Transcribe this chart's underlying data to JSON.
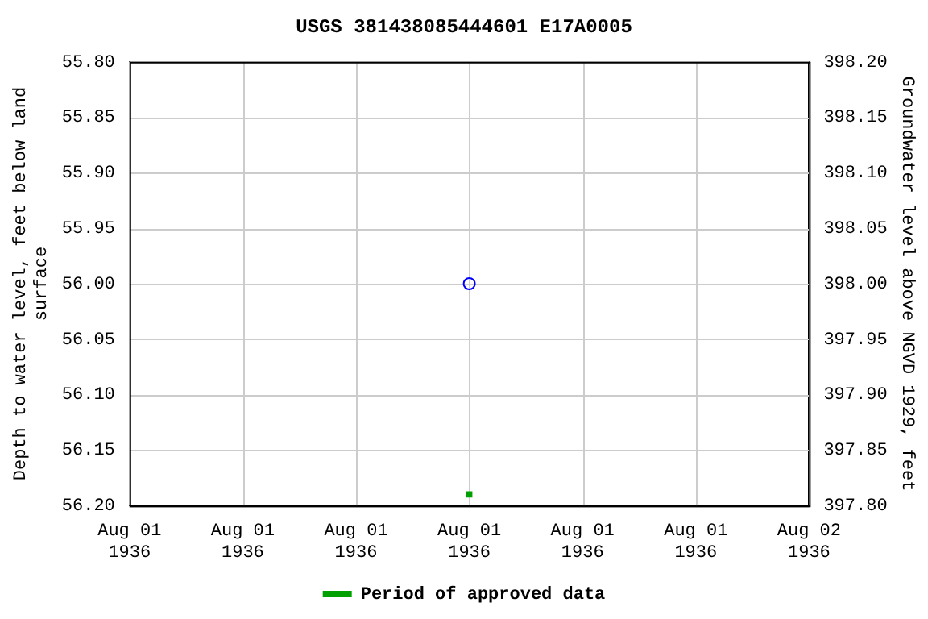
{
  "chart_data": {
    "type": "scatter",
    "title": "USGS 381438085444601 E17A0005",
    "ylabel": "Depth to water level, feet below land surface",
    "y2label": "Groundwater level above NGVD 1929, feet",
    "x": [
      "1936-08-01T12:00"
    ],
    "series": [
      {
        "color": "#0000ff",
        "values": [
          56.0
        ],
        "marker": "circle"
      },
      {
        "name": "Period of approved data",
        "color": "#00a000",
        "values": [
          56.19
        ],
        "marker": "square"
      }
    ],
    "xlim": [
      "1936-08-01T00:00",
      "1936-08-02T00:00"
    ],
    "xticks": [
      {
        "value": "1936-08-01T00:00",
        "label": "Aug 01\n1936"
      },
      {
        "value": "1936-08-01T04:00",
        "label": "Aug 01\n1936"
      },
      {
        "value": "1936-08-01T08:00",
        "label": "Aug 01\n1936"
      },
      {
        "value": "1936-08-01T12:00",
        "label": "Aug 01\n1936"
      },
      {
        "value": "1936-08-01T16:00",
        "label": "Aug 01\n1936"
      },
      {
        "value": "1936-08-01T20:00",
        "label": "Aug 01\n1936"
      },
      {
        "value": "1936-08-02T00:00",
        "label": "Aug 02\n1936"
      }
    ],
    "ylim": [
      56.2,
      55.8
    ],
    "yticks": [
      {
        "value": 55.8,
        "label": "55.80"
      },
      {
        "value": 55.85,
        "label": "55.85"
      },
      {
        "value": 55.9,
        "label": "55.90"
      },
      {
        "value": 55.95,
        "label": "55.95"
      },
      {
        "value": 56.0,
        "label": "56.00"
      },
      {
        "value": 56.05,
        "label": "56.05"
      },
      {
        "value": 56.1,
        "label": "56.10"
      },
      {
        "value": 56.15,
        "label": "56.15"
      },
      {
        "value": 56.2,
        "label": "56.20"
      }
    ],
    "y2lim": [
      397.8,
      398.2
    ],
    "y2ticks": [
      {
        "value": 397.8,
        "label": "397.80"
      },
      {
        "value": 397.85,
        "label": "397.85"
      },
      {
        "value": 397.9,
        "label": "397.90"
      },
      {
        "value": 397.95,
        "label": "397.95"
      },
      {
        "value": 398.0,
        "label": "398.00"
      },
      {
        "value": 398.05,
        "label": "398.05"
      },
      {
        "value": 398.1,
        "label": "398.10"
      },
      {
        "value": 398.15,
        "label": "398.15"
      },
      {
        "value": 398.2,
        "label": "398.20"
      }
    ],
    "grid": true,
    "legend": "bottom"
  }
}
